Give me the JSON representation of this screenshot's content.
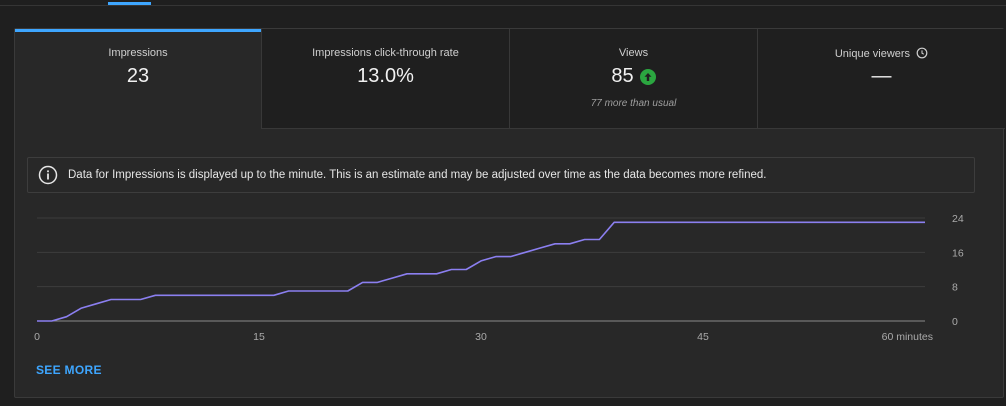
{
  "metrics": [
    {
      "label": "Impressions",
      "value": "23",
      "note": ""
    },
    {
      "label": "Impressions click-through rate",
      "value": "13.0%",
      "note": ""
    },
    {
      "label": "Views",
      "value": "85",
      "note": "77 more than usual"
    },
    {
      "label": "Unique viewers",
      "value": "—",
      "note": ""
    }
  ],
  "notice": {
    "text": "Data for Impressions is displayed up to the minute. This is an estimate and may be adjusted over time as the data becomes more refined."
  },
  "see_more_label": "SEE MORE",
  "colors": {
    "accent": "#3ea6ff",
    "line": "#8b7ff0",
    "up": "#2ba640"
  },
  "chart_data": {
    "type": "line",
    "title": "",
    "xlabel": "",
    "ylabel": "",
    "xlim": [
      0,
      60
    ],
    "ylim": [
      0,
      24
    ],
    "x_ticks": [
      {
        "value": 0,
        "label": "0"
      },
      {
        "value": 15,
        "label": "15"
      },
      {
        "value": 30,
        "label": "30"
      },
      {
        "value": 45,
        "label": "45"
      },
      {
        "value": 60,
        "label": "60 minutes"
      }
    ],
    "y_ticks": [
      0,
      8,
      16,
      24
    ],
    "grid": true,
    "series": [
      {
        "name": "",
        "x": [
          0,
          1,
          2,
          3,
          4,
          5,
          6,
          7,
          8,
          9,
          10,
          11,
          12,
          13,
          14,
          15,
          16,
          17,
          18,
          19,
          20,
          21,
          22,
          23,
          24,
          25,
          26,
          27,
          28,
          29,
          30,
          31,
          32,
          33,
          34,
          35,
          36,
          37,
          38,
          39,
          40,
          41,
          42,
          43,
          44,
          45,
          46,
          47,
          48,
          49,
          50,
          51,
          52,
          53,
          54,
          55,
          56,
          57,
          58,
          59,
          60
        ],
        "values": [
          0,
          0,
          1,
          3,
          4,
          5,
          5,
          5,
          6,
          6,
          6,
          6,
          6,
          6,
          6,
          6,
          6,
          7,
          7,
          7,
          7,
          7,
          9,
          9,
          10,
          11,
          11,
          11,
          12,
          12,
          14,
          15,
          15,
          16,
          17,
          18,
          18,
          19,
          19,
          23,
          23,
          23,
          23,
          23,
          23,
          23,
          23,
          23,
          23,
          23,
          23,
          23,
          23,
          23,
          23,
          23,
          23,
          23,
          23,
          23,
          23
        ]
      }
    ]
  }
}
